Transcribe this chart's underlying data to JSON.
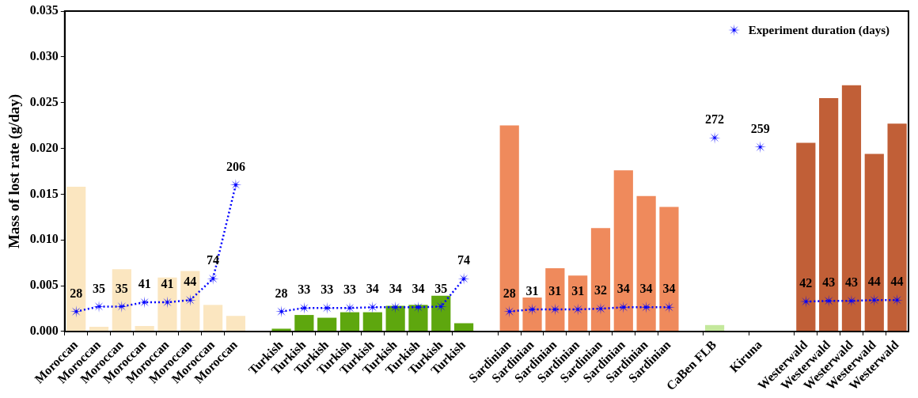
{
  "chart_data": {
    "type": "bar",
    "ylabel": "Mass of lost rate (g/day)",
    "categories": [
      "Moroccan",
      "Moroccan",
      "Moroccan",
      "Moroccan",
      "Moroccan",
      "Moroccan",
      "Moroccan",
      "Moroccan",
      null,
      "Turkish",
      "Turkish",
      "Turkish",
      "Turkish",
      "Turkish",
      "Turkish",
      "Turkish",
      "Turkish",
      "Turkish",
      null,
      "Sardinian",
      "Sardinian",
      "Sardinian",
      "Sardinian",
      "Sardinian",
      "Sardinian",
      "Sardinian",
      "Sardinian",
      null,
      "CaBen FLB",
      null,
      "Kiruna",
      null,
      "Westerwald",
      "Westerwald",
      "Westerwald",
      "Westerwald",
      "Westerwald"
    ],
    "series": [
      {
        "type": "bar",
        "colors": [
          "#fbe6c0",
          "#fbe6c0",
          "#fbe6c0",
          "#fbe6c0",
          "#fbe6c0",
          "#fbe6c0",
          "#fbe6c0",
          "#fbe6c0",
          null,
          "#5ea70e",
          "#5ea70e",
          "#5ea70e",
          "#5ea70e",
          "#5ea70e",
          "#5ea70e",
          "#5ea70e",
          "#5ea70e",
          "#5ea70e",
          null,
          "#ef8a5c",
          "#ef8a5c",
          "#ef8a5c",
          "#ef8a5c",
          "#ef8a5c",
          "#ef8a5c",
          "#ef8a5c",
          "#ef8a5c",
          null,
          "#c4e89c",
          null,
          "#c4e89c",
          null,
          "#c15f37",
          "#c15f37",
          "#c15f37",
          "#c15f37",
          "#c15f37"
        ],
        "values": [
          0.0158,
          0.0005,
          0.0068,
          0.0006,
          0.0059,
          0.0066,
          0.0029,
          0.0017,
          null,
          0.0003,
          0.0018,
          0.0015,
          0.0021,
          0.0021,
          0.0028,
          0.0029,
          0.0039,
          0.0009,
          null,
          0.0225,
          0.0037,
          0.0069,
          0.0061,
          0.0113,
          0.0176,
          0.0148,
          0.0136,
          null,
          0.0007,
          null,
          0,
          null,
          0.0206,
          0.0255,
          0.0269,
          0.0194,
          0.0227
        ]
      },
      {
        "type": "line",
        "name": "Experiment duration (days)",
        "axis": "y2",
        "color": "#0000ff",
        "values": [
          28,
          35,
          35,
          41,
          41,
          44,
          74,
          206,
          null,
          28,
          33,
          33,
          33,
          34,
          34,
          34,
          35,
          74,
          null,
          28,
          31,
          31,
          31,
          32,
          34,
          34,
          34,
          null,
          272,
          null,
          259,
          null,
          42,
          43,
          43,
          44,
          44
        ],
        "value_labels": [
          "28",
          "35",
          "35",
          "41",
          "41",
          "44",
          "74",
          "206",
          null,
          "28",
          "33",
          "33",
          "33",
          "34",
          "34",
          "34",
          "35",
          "74",
          null,
          "28",
          "31",
          "31",
          "31",
          "32",
          "34",
          "34",
          "34",
          null,
          "272",
          null,
          "259",
          null,
          "42",
          "43",
          "43",
          "44",
          "44"
        ]
      }
    ],
    "ylim": [
      0,
      0.035
    ],
    "yticks": [
      {
        "value": 0,
        "label": "0.000"
      },
      {
        "value": 0.005,
        "label": "0.005"
      },
      {
        "value": 0.01,
        "label": "0.010"
      },
      {
        "value": 0.015,
        "label": "0.015"
      },
      {
        "value": 0.02,
        "label": "0.020"
      },
      {
        "value": 0.025,
        "label": "0.025"
      },
      {
        "value": 0.03,
        "label": "0.030"
      },
      {
        "value": 0.035,
        "label": "0.035"
      }
    ],
    "y2lim": [
      0,
      450
    ],
    "grid": false,
    "legend": "top right",
    "marker": "star",
    "line_style": "dotted"
  }
}
